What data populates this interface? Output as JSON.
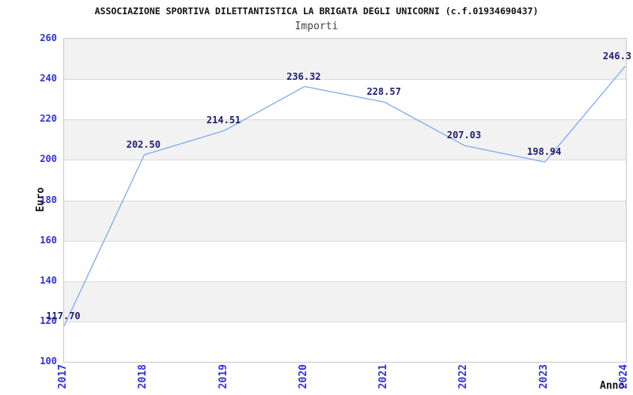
{
  "page": {
    "title": "ASSOCIAZIONE SPORTIVA DILETTANTISTICA LA BRIGATA DEGLI UNICORNI (c.f.01934690437)",
    "subtitle": "Importi"
  },
  "chart_data": {
    "type": "line",
    "title": "ASSOCIAZIONE SPORTIVA DILETTANTISTICA LA BRIGATA DEGLI UNICORNI (c.f.01934690437)",
    "subtitle": "Importi",
    "xlabel": "Anno",
    "ylabel": "Euro",
    "categories": [
      "2017",
      "2018",
      "2019",
      "2020",
      "2021",
      "2022",
      "2023",
      "2024"
    ],
    "values": [
      117.7,
      202.5,
      214.51,
      236.32,
      228.57,
      207.03,
      198.94,
      246.3
    ],
    "point_labels": [
      "117.70",
      "202.50",
      "214.51",
      "236.32",
      "228.57",
      "207.03",
      "198.94",
      "246.3"
    ],
    "ylim": [
      100,
      260
    ],
    "ytick_step": 20,
    "grid": true,
    "legend_position": "none",
    "band_pattern": "alternating horizontal bands, gray on 240-260 / 200-220 / 160-180 / 120-140"
  },
  "colors": {
    "line": "#7fabee",
    "axis_tick_label": "#3232d6",
    "point_label": "#202070",
    "band_gray": "#f2f2f2",
    "band_white": "#ffffff",
    "gridline": "#dcdcdc",
    "plot_border": "#c9c9c9",
    "title": "#111111",
    "subtitle": "#444444"
  }
}
